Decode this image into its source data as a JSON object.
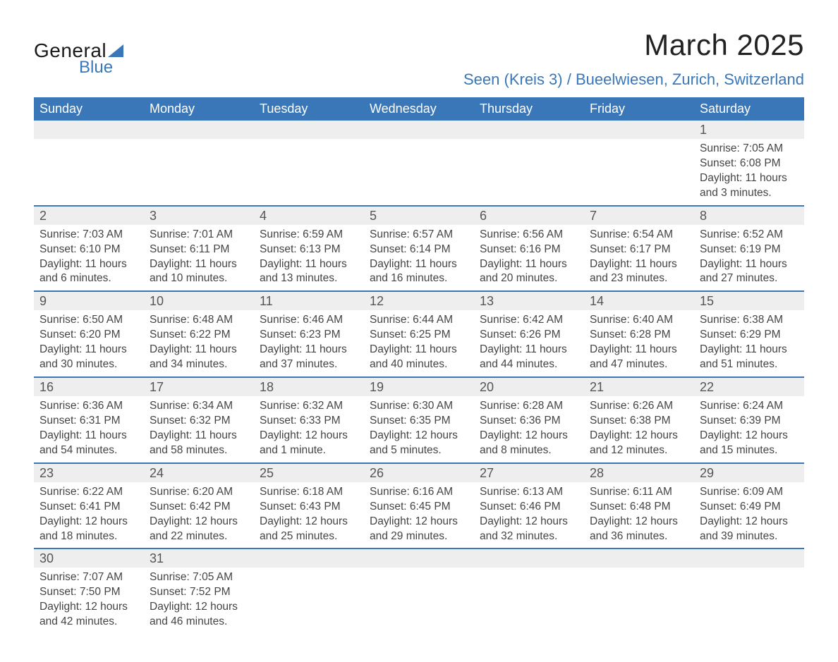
{
  "colors": {
    "accent": "#3a77b8",
    "header_bg": "#3a77b8",
    "header_text": "#ffffff",
    "daynum_bg": "#eeeeee",
    "daynum_text": "#555555",
    "body_bg": "#ffffff",
    "text": "#444444",
    "title_text": "#222222"
  },
  "fonts": {
    "family": "Arial",
    "title_size_pt": 32,
    "location_size_pt": 17,
    "header_size_pt": 14,
    "daynum_size_pt": 14,
    "body_size_pt": 12
  },
  "logo": {
    "text_general": "General",
    "text_blue": "Blue"
  },
  "title": "March 2025",
  "location": "Seen (Kreis 3) / Bueelwiesen, Zurich, Switzerland",
  "weekday_headers": [
    "Sunday",
    "Monday",
    "Tuesday",
    "Wednesday",
    "Thursday",
    "Friday",
    "Saturday"
  ],
  "labels": {
    "sunrise": "Sunrise:",
    "sunset": "Sunset:",
    "daylight": "Daylight:"
  },
  "weeks": [
    [
      null,
      null,
      null,
      null,
      null,
      null,
      {
        "day": "1",
        "sunrise": "7:05 AM",
        "sunset": "6:08 PM",
        "daylight": "11 hours and 3 minutes."
      }
    ],
    [
      {
        "day": "2",
        "sunrise": "7:03 AM",
        "sunset": "6:10 PM",
        "daylight": "11 hours and 6 minutes."
      },
      {
        "day": "3",
        "sunrise": "7:01 AM",
        "sunset": "6:11 PM",
        "daylight": "11 hours and 10 minutes."
      },
      {
        "day": "4",
        "sunrise": "6:59 AM",
        "sunset": "6:13 PM",
        "daylight": "11 hours and 13 minutes."
      },
      {
        "day": "5",
        "sunrise": "6:57 AM",
        "sunset": "6:14 PM",
        "daylight": "11 hours and 16 minutes."
      },
      {
        "day": "6",
        "sunrise": "6:56 AM",
        "sunset": "6:16 PM",
        "daylight": "11 hours and 20 minutes."
      },
      {
        "day": "7",
        "sunrise": "6:54 AM",
        "sunset": "6:17 PM",
        "daylight": "11 hours and 23 minutes."
      },
      {
        "day": "8",
        "sunrise": "6:52 AM",
        "sunset": "6:19 PM",
        "daylight": "11 hours and 27 minutes."
      }
    ],
    [
      {
        "day": "9",
        "sunrise": "6:50 AM",
        "sunset": "6:20 PM",
        "daylight": "11 hours and 30 minutes."
      },
      {
        "day": "10",
        "sunrise": "6:48 AM",
        "sunset": "6:22 PM",
        "daylight": "11 hours and 34 minutes."
      },
      {
        "day": "11",
        "sunrise": "6:46 AM",
        "sunset": "6:23 PM",
        "daylight": "11 hours and 37 minutes."
      },
      {
        "day": "12",
        "sunrise": "6:44 AM",
        "sunset": "6:25 PM",
        "daylight": "11 hours and 40 minutes."
      },
      {
        "day": "13",
        "sunrise": "6:42 AM",
        "sunset": "6:26 PM",
        "daylight": "11 hours and 44 minutes."
      },
      {
        "day": "14",
        "sunrise": "6:40 AM",
        "sunset": "6:28 PM",
        "daylight": "11 hours and 47 minutes."
      },
      {
        "day": "15",
        "sunrise": "6:38 AM",
        "sunset": "6:29 PM",
        "daylight": "11 hours and 51 minutes."
      }
    ],
    [
      {
        "day": "16",
        "sunrise": "6:36 AM",
        "sunset": "6:31 PM",
        "daylight": "11 hours and 54 minutes."
      },
      {
        "day": "17",
        "sunrise": "6:34 AM",
        "sunset": "6:32 PM",
        "daylight": "11 hours and 58 minutes."
      },
      {
        "day": "18",
        "sunrise": "6:32 AM",
        "sunset": "6:33 PM",
        "daylight": "12 hours and 1 minute."
      },
      {
        "day": "19",
        "sunrise": "6:30 AM",
        "sunset": "6:35 PM",
        "daylight": "12 hours and 5 minutes."
      },
      {
        "day": "20",
        "sunrise": "6:28 AM",
        "sunset": "6:36 PM",
        "daylight": "12 hours and 8 minutes."
      },
      {
        "day": "21",
        "sunrise": "6:26 AM",
        "sunset": "6:38 PM",
        "daylight": "12 hours and 12 minutes."
      },
      {
        "day": "22",
        "sunrise": "6:24 AM",
        "sunset": "6:39 PM",
        "daylight": "12 hours and 15 minutes."
      }
    ],
    [
      {
        "day": "23",
        "sunrise": "6:22 AM",
        "sunset": "6:41 PM",
        "daylight": "12 hours and 18 minutes."
      },
      {
        "day": "24",
        "sunrise": "6:20 AM",
        "sunset": "6:42 PM",
        "daylight": "12 hours and 22 minutes."
      },
      {
        "day": "25",
        "sunrise": "6:18 AM",
        "sunset": "6:43 PM",
        "daylight": "12 hours and 25 minutes."
      },
      {
        "day": "26",
        "sunrise": "6:16 AM",
        "sunset": "6:45 PM",
        "daylight": "12 hours and 29 minutes."
      },
      {
        "day": "27",
        "sunrise": "6:13 AM",
        "sunset": "6:46 PM",
        "daylight": "12 hours and 32 minutes."
      },
      {
        "day": "28",
        "sunrise": "6:11 AM",
        "sunset": "6:48 PM",
        "daylight": "12 hours and 36 minutes."
      },
      {
        "day": "29",
        "sunrise": "6:09 AM",
        "sunset": "6:49 PM",
        "daylight": "12 hours and 39 minutes."
      }
    ],
    [
      {
        "day": "30",
        "sunrise": "7:07 AM",
        "sunset": "7:50 PM",
        "daylight": "12 hours and 42 minutes."
      },
      {
        "day": "31",
        "sunrise": "7:05 AM",
        "sunset": "7:52 PM",
        "daylight": "12 hours and 46 minutes."
      },
      null,
      null,
      null,
      null,
      null
    ]
  ]
}
